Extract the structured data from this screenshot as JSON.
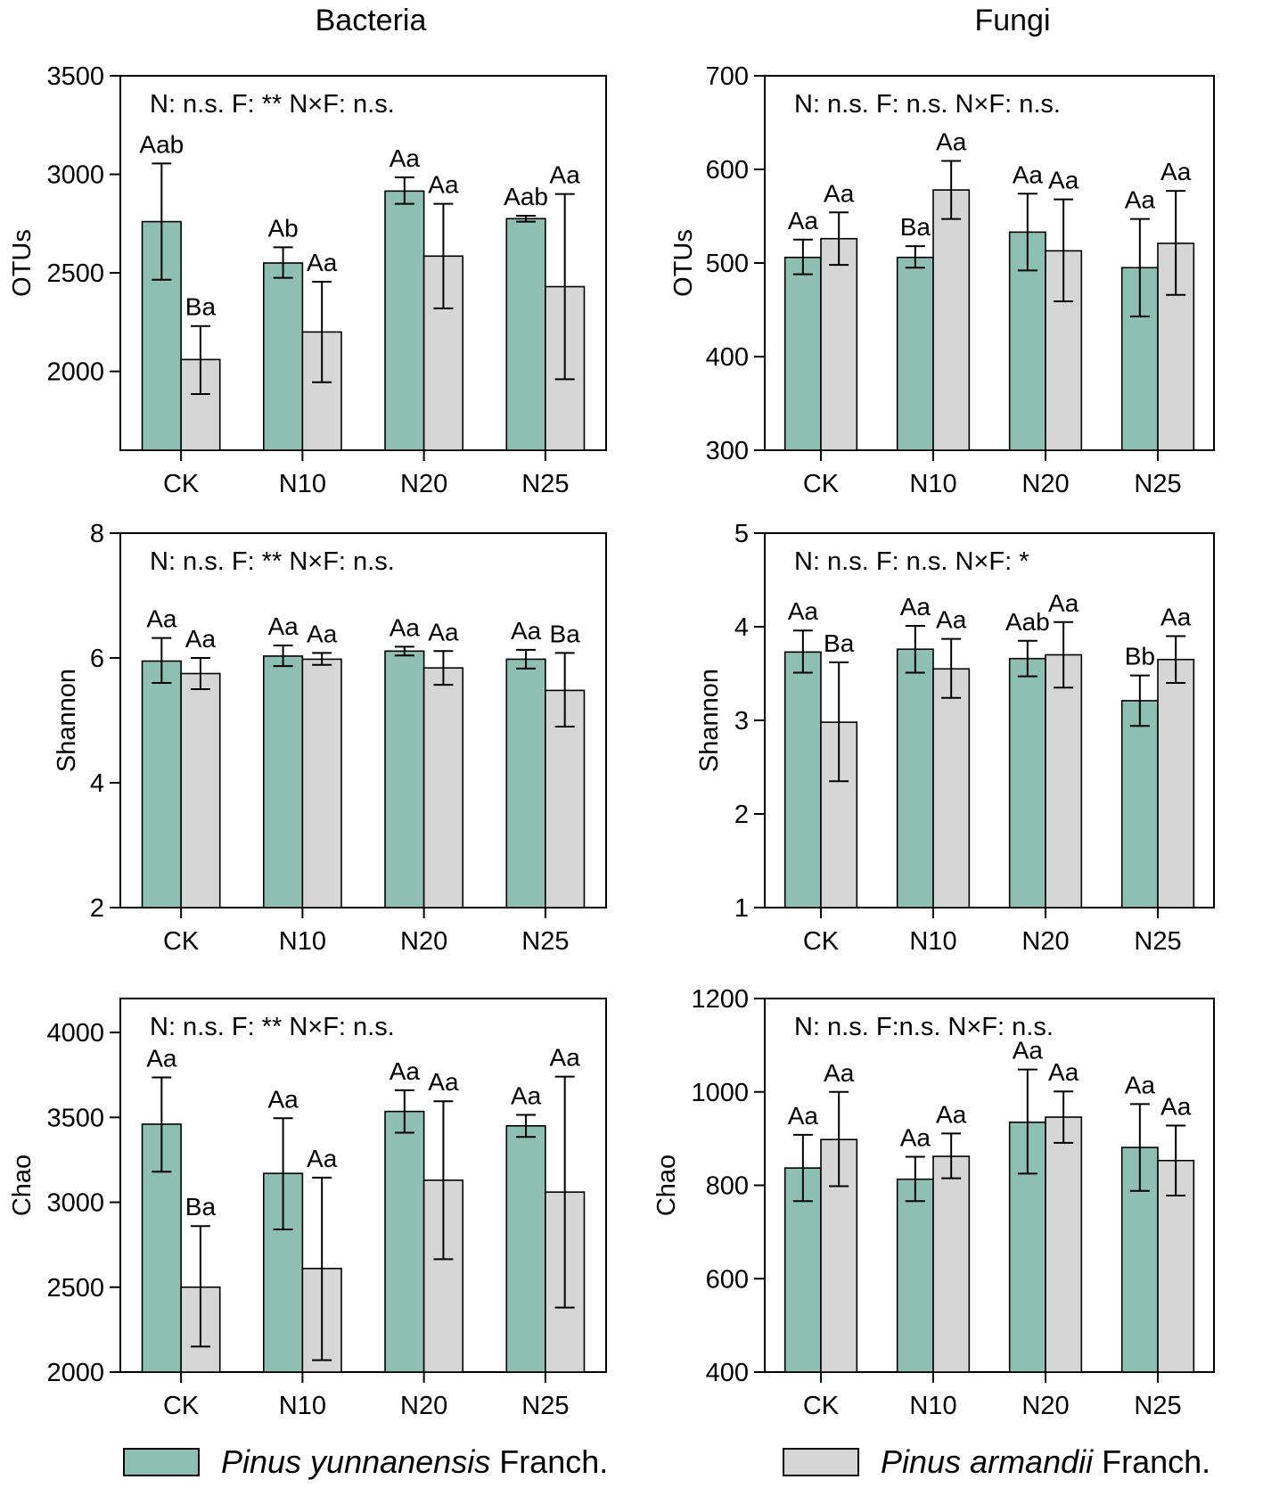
{
  "column_titles": {
    "bacteria": "Bacteria",
    "fungi": "Fungi"
  },
  "legend": {
    "series1": {
      "italic": "Pinus yunnanensis",
      "suffix": " Franch."
    },
    "series2": {
      "italic": "Pinus armandii",
      "suffix": " Franch."
    }
  },
  "colors": {
    "series1": "#8dbfb2",
    "series2": "#d6d6d6"
  },
  "chart_data": [
    {
      "type": "bar",
      "group": "Bacteria",
      "ylabel": "OTUs",
      "stat_text": "N: n.s.  F: **  N×F: n.s.",
      "categories": [
        "CK",
        "N10",
        "N20",
        "N25"
      ],
      "ylim": [
        1600,
        3500
      ],
      "yticks": [
        2000,
        2500,
        3000,
        3500
      ],
      "series": [
        {
          "name": "Pinus yunnanensis Franch.",
          "values": [
            2760,
            2550,
            2915,
            2775
          ],
          "err_low": [
            2465,
            2475,
            2850,
            2760
          ],
          "err_high": [
            3055,
            2630,
            2985,
            2790
          ],
          "labels": [
            "Aab",
            "Ab",
            "Aa",
            "Aab"
          ]
        },
        {
          "name": "Pinus armandii Franch.",
          "values": [
            2060,
            2200,
            2585,
            2430
          ],
          "err_low": [
            1885,
            1945,
            2320,
            1960
          ],
          "err_high": [
            2230,
            2455,
            2850,
            2900
          ],
          "labels": [
            "Ba",
            "Aa",
            "Aa",
            "Aa"
          ]
        }
      ]
    },
    {
      "type": "bar",
      "group": "Fungi",
      "ylabel": "OTUs",
      "stat_text": "N: n.s.  F: n.s.  N×F: n.s.",
      "categories": [
        "CK",
        "N10",
        "N20",
        "N25"
      ],
      "ylim": [
        300,
        700
      ],
      "yticks": [
        300,
        400,
        500,
        600,
        700
      ],
      "series": [
        {
          "name": "Pinus yunnanensis Franch.",
          "values": [
            506,
            506,
            533,
            495
          ],
          "err_low": [
            488,
            495,
            492,
            443
          ],
          "err_high": [
            525,
            518,
            574,
            547
          ],
          "labels": [
            "Aa",
            "Ba",
            "Aa",
            "Aa"
          ]
        },
        {
          "name": "Pinus armandii Franch.",
          "values": [
            526,
            578,
            513,
            521
          ],
          "err_low": [
            498,
            547,
            459,
            466
          ],
          "err_high": [
            554,
            609,
            568,
            577
          ],
          "labels": [
            "Aa",
            "Aa",
            "Aa",
            "Aa"
          ]
        }
      ]
    },
    {
      "type": "bar",
      "group": "Bacteria",
      "ylabel": "Shannon",
      "stat_text": "N: n.s.  F: **  N×F: n.s.",
      "categories": [
        "CK",
        "N10",
        "N20",
        "N25"
      ],
      "ylim": [
        2,
        8
      ],
      "yticks": [
        2,
        4,
        6,
        8
      ],
      "series": [
        {
          "name": "Pinus yunnanensis Franch.",
          "values": [
            5.95,
            6.03,
            6.11,
            5.98
          ],
          "err_low": [
            5.6,
            5.87,
            6.04,
            5.83
          ],
          "err_high": [
            6.32,
            6.2,
            6.18,
            6.13
          ],
          "labels": [
            "Aa",
            "Aa",
            "Aa",
            "Aa"
          ]
        },
        {
          "name": "Pinus armandii Franch.",
          "values": [
            5.75,
            5.98,
            5.84,
            5.48
          ],
          "err_low": [
            5.5,
            5.89,
            5.57,
            4.9
          ],
          "err_high": [
            6.0,
            6.08,
            6.11,
            6.08
          ],
          "labels": [
            "Aa",
            "Aa",
            "Aa",
            "Ba"
          ]
        }
      ]
    },
    {
      "type": "bar",
      "group": "Fungi",
      "ylabel": "Shannon",
      "stat_text": "N: n.s.  F: n.s.  N×F: *",
      "categories": [
        "CK",
        "N10",
        "N20",
        "N25"
      ],
      "ylim": [
        1,
        5
      ],
      "yticks": [
        1,
        2,
        3,
        4,
        5
      ],
      "series": [
        {
          "name": "Pinus yunnanensis Franch.",
          "values": [
            3.73,
            3.76,
            3.66,
            3.21
          ],
          "err_low": [
            3.51,
            3.51,
            3.47,
            2.94
          ],
          "err_high": [
            3.96,
            4.01,
            3.85,
            3.48
          ],
          "labels": [
            "Aa",
            "Aa",
            "Aab",
            "Bb"
          ]
        },
        {
          "name": "Pinus armandii Franch.",
          "values": [
            2.98,
            3.55,
            3.7,
            3.65
          ],
          "err_low": [
            2.35,
            3.24,
            3.35,
            3.4
          ],
          "err_high": [
            3.62,
            3.87,
            4.05,
            3.9
          ],
          "labels": [
            "Ba",
            "Aa",
            "Aa",
            "Aa"
          ]
        }
      ]
    },
    {
      "type": "bar",
      "group": "Bacteria",
      "ylabel": "Chao",
      "stat_text": "N: n.s.  F: **  N×F: n.s.",
      "categories": [
        "CK",
        "N10",
        "N20",
        "N25"
      ],
      "ylim": [
        2000,
        4200
      ],
      "yticks": [
        2000,
        2500,
        3000,
        3500,
        4000
      ],
      "series": [
        {
          "name": "Pinus yunnanensis Franch.",
          "values": [
            3460,
            3170,
            3535,
            3450
          ],
          "err_low": [
            3180,
            2840,
            3410,
            3385
          ],
          "err_high": [
            3735,
            3495,
            3660,
            3515
          ],
          "labels": [
            "Aa",
            "Aa",
            "Aa",
            "Aa"
          ]
        },
        {
          "name": "Pinus armandii Franch.",
          "values": [
            2500,
            2610,
            3130,
            3060
          ],
          "err_low": [
            2150,
            2070,
            2665,
            2380
          ],
          "err_high": [
            2860,
            3145,
            3595,
            3740
          ],
          "labels": [
            "Ba",
            "Aa",
            "Aa",
            "Aa"
          ]
        }
      ]
    },
    {
      "type": "bar",
      "group": "Fungi",
      "ylabel": "Chao",
      "stat_text": "N: n.s.  F:n.s.  N×F: n.s.",
      "categories": [
        "CK",
        "N10",
        "N20",
        "N25"
      ],
      "ylim": [
        400,
        1200
      ],
      "yticks": [
        400,
        600,
        800,
        1000,
        1200
      ],
      "series": [
        {
          "name": "Pinus yunnanensis Franch.",
          "values": [
            837,
            813,
            935,
            881
          ],
          "err_low": [
            766,
            766,
            825,
            788
          ],
          "err_high": [
            908,
            861,
            1048,
            974
          ],
          "labels": [
            "Aa",
            "Aa",
            "Aa",
            "Aa"
          ]
        },
        {
          "name": "Pinus armandii Franch.",
          "values": [
            898,
            862,
            946,
            853
          ],
          "err_low": [
            798,
            815,
            891,
            778
          ],
          "err_high": [
            1000,
            911,
            1001,
            928
          ],
          "labels": [
            "Aa",
            "Aa",
            "Aa",
            "Aa"
          ]
        }
      ]
    }
  ]
}
